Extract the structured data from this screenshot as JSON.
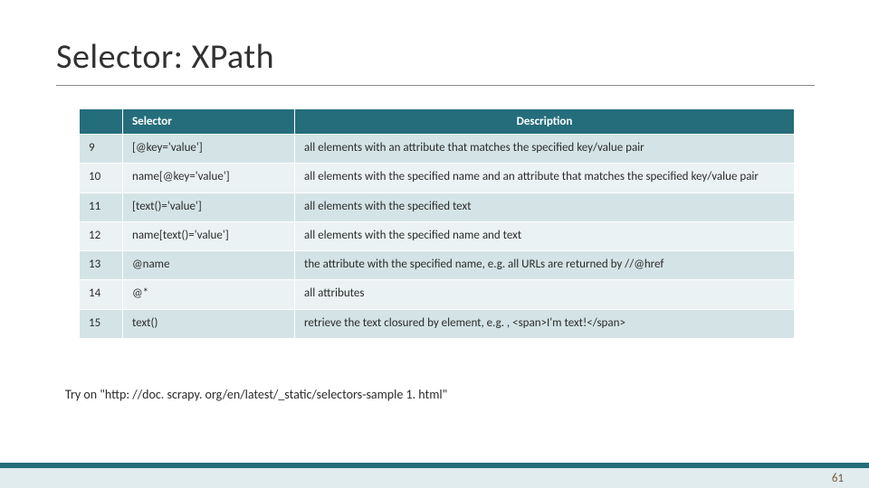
{
  "title": "Selector: XPath",
  "table": {
    "headers": {
      "col0": "",
      "col1": "Selector",
      "col2": "Description"
    },
    "rows": [
      {
        "num": "9",
        "selector": "[@key='value']",
        "desc": "all elements with an attribute that matches the specified key/value pair"
      },
      {
        "num": "10",
        "selector": "name[@key='value']",
        "desc": "all elements with the specified name and an attribute that matches the specified key/value pair"
      },
      {
        "num": "11",
        "selector": "[text()='value']",
        "desc": "all elements with the specified text"
      },
      {
        "num": "12",
        "selector": "name[text()='value']",
        "desc": "all elements with the specified name and text"
      },
      {
        "num": "13",
        "selector": "@name",
        "desc": "the attribute with the specified name, e.g. all URLs are returned by //@href"
      },
      {
        "num": "14",
        "selector": "@*",
        "desc": "all attributes"
      },
      {
        "num": "15",
        "selector": "text()",
        "desc": "retrieve the text closured by element, e.g. , <span>I'm text!</span>"
      }
    ],
    "colors": {
      "header_bg": "#256d7b",
      "header_fg": "#ffffff",
      "band_a": "#d4e4e6",
      "band_b": "#ebf2f3",
      "border": "#ffffff"
    }
  },
  "note": "Try on \"http: //doc. scrapy. org/en/latest/_static/selectors-sample 1. html\"",
  "page_number": "61",
  "accent_color": "#256d7b",
  "footer_strip_color": "#e0ecee"
}
